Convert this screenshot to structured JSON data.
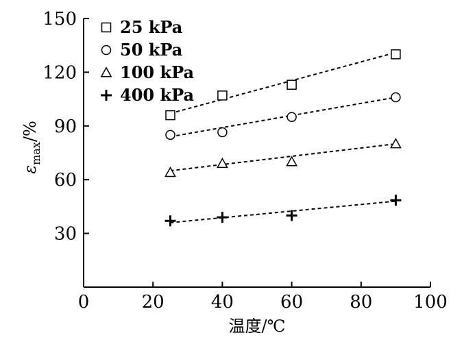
{
  "chart_data": {
    "type": "scatter",
    "title": "",
    "xlabel": "温度/℃",
    "ylabel": "εmax/%",
    "ylabel_parts": {
      "symbol": "ε",
      "subscript": "max",
      "suffix": "/%"
    },
    "xlim": [
      0,
      100
    ],
    "ylim": [
      0,
      150
    ],
    "x_ticks": [
      0,
      20,
      40,
      60,
      80,
      100
    ],
    "y_ticks": [
      30,
      60,
      90,
      120,
      150
    ],
    "grid": false,
    "legend_position": "top-left",
    "series": [
      {
        "name": "25 kPa",
        "marker": "square",
        "x": [
          25,
          40,
          60,
          90
        ],
        "y": [
          96,
          107,
          113,
          130
        ],
        "fit": [
          [
            25,
            97
          ],
          [
            90,
            131
          ]
        ]
      },
      {
        "name": "50 kPa",
        "marker": "circle",
        "x": [
          25,
          40,
          60,
          90
        ],
        "y": [
          85,
          86.5,
          95,
          106
        ],
        "fit": [
          [
            25,
            84
          ],
          [
            90,
            106
          ]
        ]
      },
      {
        "name": "100 kPa",
        "marker": "triangle",
        "x": [
          25,
          40,
          60,
          90
        ],
        "y": [
          64,
          69,
          70,
          80
        ],
        "fit": [
          [
            25,
            65
          ],
          [
            90,
            80
          ]
        ]
      },
      {
        "name": "400 kPa",
        "marker": "plus",
        "x": [
          25,
          40,
          60,
          90
        ],
        "y": [
          37,
          39,
          40,
          48.5
        ],
        "fit": [
          [
            25,
            36
          ],
          [
            90,
            48
          ]
        ]
      }
    ]
  }
}
